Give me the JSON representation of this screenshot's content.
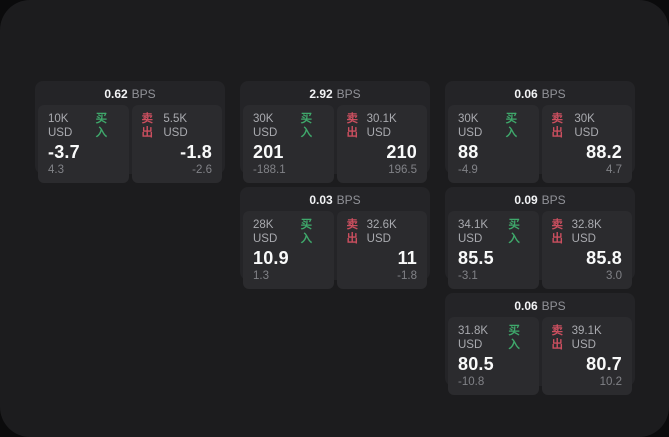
{
  "labels": {
    "buy": "买入",
    "sell": "卖出",
    "bps_unit": "BPS"
  },
  "colors": {
    "buy_green": "#3fa86b",
    "sell_red": "#cb4f5f",
    "surface": "#1c1c1e",
    "card": "#242427",
    "panel": "#2b2b2e"
  },
  "cards": [
    {
      "col": 1,
      "row": 1,
      "bps": "0.62",
      "buy": {
        "size": "10K USD",
        "price": "-3.7",
        "delta": "4.3"
      },
      "sell": {
        "size": "5.5K USD",
        "price": "-1.8",
        "delta": "-2.6"
      }
    },
    {
      "col": 2,
      "row": 1,
      "bps": "2.92",
      "buy": {
        "size": "30K USD",
        "price": "201",
        "delta": "-188.1"
      },
      "sell": {
        "size": "30.1K USD",
        "price": "210",
        "delta": "196.5"
      }
    },
    {
      "col": 3,
      "row": 1,
      "bps": "0.06",
      "buy": {
        "size": "30K USD",
        "price": "88",
        "delta": "-4.9"
      },
      "sell": {
        "size": "30K USD",
        "price": "88.2",
        "delta": "4.7"
      }
    },
    {
      "col": 2,
      "row": 2,
      "bps": "0.03",
      "buy": {
        "size": "28K USD",
        "price": "10.9",
        "delta": "1.3"
      },
      "sell": {
        "size": "32.6K USD",
        "price": "11",
        "delta": "-1.8"
      }
    },
    {
      "col": 3,
      "row": 2,
      "bps": "0.09",
      "buy": {
        "size": "34.1K USD",
        "price": "85.5",
        "delta": "-3.1"
      },
      "sell": {
        "size": "32.8K USD",
        "price": "85.8",
        "delta": "3.0"
      }
    },
    {
      "col": 3,
      "row": 3,
      "bps": "0.06",
      "buy": {
        "size": "31.8K USD",
        "price": "80.5",
        "delta": "-10.8"
      },
      "sell": {
        "size": "39.1K USD",
        "price": "80.7",
        "delta": "10.2"
      }
    }
  ]
}
